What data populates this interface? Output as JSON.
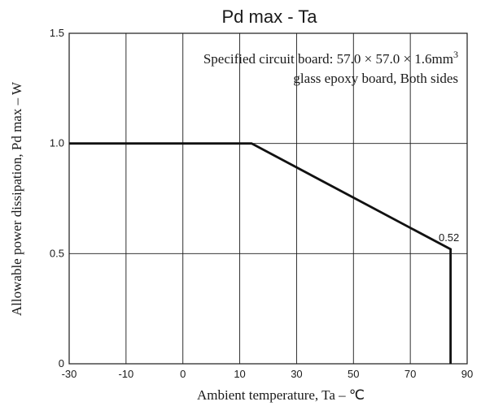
{
  "chart_data": {
    "type": "line",
    "title": "Pd max  -  Ta",
    "xlabel": "Ambient temperature, Ta –  ℃",
    "ylabel": "Allowable power dissipation, Pd max – W",
    "xlim": [
      -30,
      90
    ],
    "ylim": [
      0,
      1.5
    ],
    "x_ticks": [
      "-30",
      "-10",
      "0",
      "10",
      "30",
      "50",
      "70",
      "90"
    ],
    "y_ticks": [
      "0",
      "0.5",
      "1.0",
      "1.5"
    ],
    "grid": true,
    "series": [
      {
        "x": [
          -30,
          25,
          85,
          85
        ],
        "y": [
          1.0,
          1.0,
          0.52,
          0
        ]
      }
    ],
    "data_labels": [
      {
        "text": "0.52",
        "x": 85,
        "y": 0.52
      }
    ],
    "annotation": {
      "line1_text": "Specified circuit board: 57.0 × 57.0 × 1.6mm",
      "line1_superscript": "3",
      "line2": "glass epoxy board, Both sides"
    }
  }
}
